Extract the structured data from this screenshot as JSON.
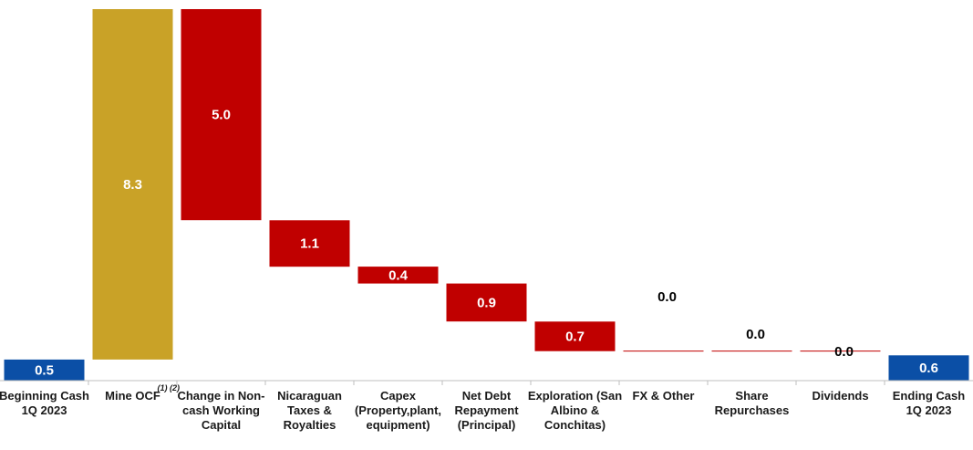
{
  "chart_data": {
    "type": "waterfall",
    "title": "",
    "xlabel": "",
    "ylabel": "",
    "ylim": [
      0,
      8.8
    ],
    "grid": false,
    "legend": "none",
    "colors": {
      "total": "#0b4fa6",
      "increase": "#c9a227",
      "decrease": "#c00000",
      "positive_label": "#000000",
      "bar_label": "#ffffff"
    },
    "bars": [
      {
        "category": [
          "Beginning Cash",
          "1Q 2023"
        ],
        "value": 0.5,
        "label": "0.5",
        "kind": "total",
        "footnote": ""
      },
      {
        "category": [
          "Mine OCF"
        ],
        "value": 8.3,
        "label": "8.3",
        "kind": "increase",
        "footnote": "(1) (2)"
      },
      {
        "category": [
          "Change in Non-",
          "cash Working",
          "Capital"
        ],
        "value": -5.0,
        "label": "5.0",
        "kind": "decrease",
        "footnote": ""
      },
      {
        "category": [
          "Nicaraguan",
          "Taxes &",
          "Royalties"
        ],
        "value": -1.1,
        "label": "1.1",
        "kind": "decrease",
        "footnote": ""
      },
      {
        "category": [
          "Capex",
          "(Property,plant,",
          "equipment)"
        ],
        "value": -0.4,
        "label": "0.4",
        "kind": "decrease",
        "footnote": ""
      },
      {
        "category": [
          "Net Debt",
          "Repayment",
          "(Principal)"
        ],
        "value": -0.9,
        "label": "0.9",
        "kind": "decrease",
        "footnote": ""
      },
      {
        "category": [
          "Exploration (San",
          "Albino &",
          "Conchitas)"
        ],
        "value": -0.7,
        "label": "0.7",
        "kind": "decrease",
        "footnote": ""
      },
      {
        "category": [
          "FX & Other"
        ],
        "value": 0.0,
        "label": "0.0",
        "kind": "decrease",
        "footnote": ""
      },
      {
        "category": [
          "Share",
          "Repurchases"
        ],
        "value": 0.0,
        "label": "0.0",
        "kind": "decrease",
        "footnote": ""
      },
      {
        "category": [
          "Dividends"
        ],
        "value": 0.0,
        "label": "0.0",
        "kind": "decrease",
        "footnote": ""
      },
      {
        "category": [
          "Ending Cash",
          "1Q 2023"
        ],
        "value": 0.6,
        "label": "0.6",
        "kind": "total",
        "footnote": ""
      }
    ]
  }
}
